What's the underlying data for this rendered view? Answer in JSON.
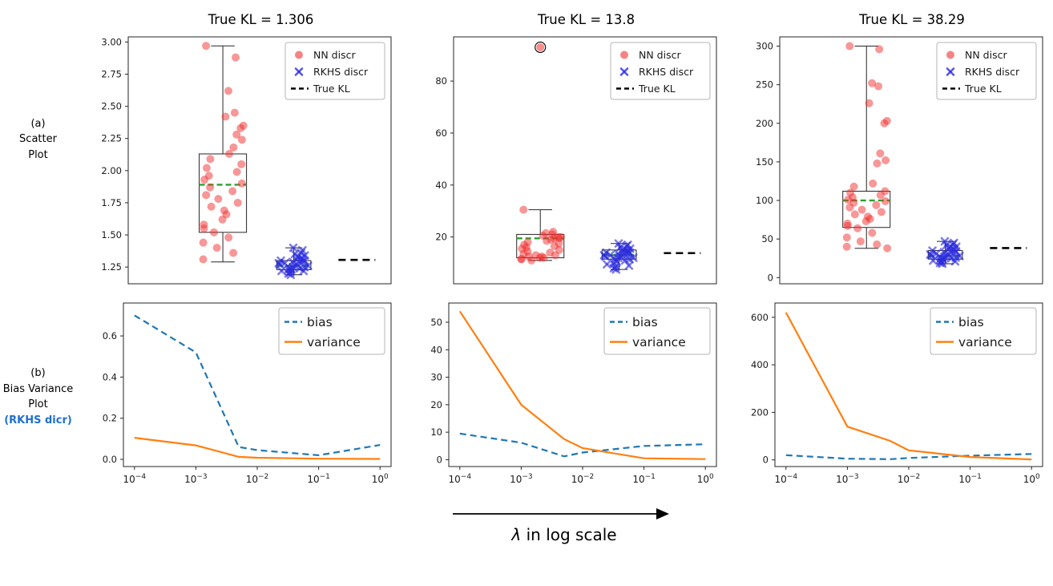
{
  "colors": {
    "nn_scatter": "#f03030",
    "rkhs_scatter": "#2a2ae0",
    "median": "#2ca02c",
    "true_kl": "#000000",
    "bias_line": "#1f77b4",
    "variance_line": "#ff7f0e",
    "row_label_accent": "#1f6fd0"
  },
  "row_labels": {
    "a": [
      "(a)",
      "Scatter",
      "Plot"
    ],
    "b": [
      "(b)",
      "Bias  Variance",
      "Plot",
      "(RKHS dicr)"
    ]
  },
  "annotation": {
    "symbol": "λ",
    "text": " in log scale"
  },
  "chart_data": [
    {
      "type": "box-scatter",
      "title": "True KL = 1.306",
      "true_kl": 1.306,
      "ylim": [
        1.12,
        3.04
      ],
      "yticks": [
        1.25,
        1.5,
        1.75,
        2.0,
        2.25,
        2.5,
        2.75,
        3.0
      ],
      "ydec": 2,
      "median_color": "#2ca02c",
      "groups": [
        {
          "name": "NN discr",
          "marker": "circle",
          "color": "#f03030",
          "center": 0.36,
          "box_width": 0.18,
          "box": {
            "whislo": 1.29,
            "q1": 1.52,
            "med": 1.89,
            "q3": 2.13,
            "whishi": 2.97
          },
          "points": [
            2.97,
            2.88,
            2.62,
            2.45,
            2.42,
            2.35,
            2.33,
            2.28,
            2.24,
            2.18,
            2.13,
            2.09,
            2.05,
            2.02,
            1.99,
            1.96,
            1.93,
            1.9,
            1.87,
            1.84,
            1.81,
            1.78,
            1.75,
            1.72,
            1.69,
            1.66,
            1.62,
            1.58,
            1.55,
            1.52,
            1.48,
            1.44,
            1.4,
            1.36,
            1.31
          ]
        },
        {
          "name": "RKHS discr",
          "marker": "x",
          "color": "#2a2ae0",
          "center": 0.63,
          "box_width": 0.13,
          "box": {
            "whislo": 1.19,
            "q1": 1.23,
            "med": 1.26,
            "q3": 1.3,
            "whishi": 1.4
          },
          "points": [
            1.4,
            1.38,
            1.36,
            1.35,
            1.34,
            1.33,
            1.32,
            1.31,
            1.31,
            1.3,
            1.3,
            1.29,
            1.29,
            1.28,
            1.28,
            1.27,
            1.27,
            1.26,
            1.26,
            1.25,
            1.25,
            1.24,
            1.24,
            1.23,
            1.23,
            1.22,
            1.22,
            1.21,
            1.2,
            1.19
          ]
        }
      ],
      "legend": [
        {
          "label": "NN discr",
          "marker": "circle",
          "color": "#f03030"
        },
        {
          "label": "RKHS discr",
          "marker": "x",
          "color": "#2a2ae0"
        },
        {
          "label": "True KL",
          "marker": "dash",
          "color": "#000000"
        }
      ]
    },
    {
      "type": "box-scatter",
      "title": "True KL = 13.8",
      "true_kl": 13.8,
      "ylim": [
        2,
        97
      ],
      "yticks": [
        20,
        40,
        60,
        80
      ],
      "ydec": 0,
      "median_color": "#2ca02c",
      "groups": [
        {
          "name": "NN discr",
          "marker": "circle",
          "color": "#f03030",
          "center": 0.33,
          "box_width": 0.18,
          "box": {
            "whislo": 11,
            "q1": 12,
            "med": 19.5,
            "q3": 21,
            "whishi": 30.5
          },
          "outliers": [
            93
          ],
          "points": [
            30.5,
            22,
            21.5,
            21,
            20.5,
            20,
            20,
            19.5,
            19.5,
            19,
            18.5,
            18,
            17.5,
            17,
            16.5,
            16,
            15.5,
            15,
            14.5,
            14,
            13.5,
            13,
            13,
            12.5,
            12.5,
            12,
            12,
            11.5,
            11.5,
            11
          ]
        },
        {
          "name": "RKHS discr",
          "marker": "x",
          "color": "#2a2ae0",
          "center": 0.63,
          "box_width": 0.13,
          "box": {
            "whislo": 7.5,
            "q1": 11.5,
            "med": 13,
            "q3": 15,
            "whishi": 17.5
          },
          "points": [
            17.5,
            17,
            16.5,
            16,
            15.5,
            15,
            15,
            14.5,
            14.5,
            14,
            14,
            13.5,
            13.5,
            13,
            13,
            13,
            12.5,
            12.5,
            12,
            12,
            11.5,
            11.5,
            11,
            10.5,
            10,
            9.5,
            9,
            8.5,
            8,
            7.5
          ]
        }
      ],
      "legend": [
        {
          "label": "NN discr",
          "marker": "circle",
          "color": "#f03030"
        },
        {
          "label": "RKHS discr",
          "marker": "x",
          "color": "#2a2ae0"
        },
        {
          "label": "True KL",
          "marker": "dash",
          "color": "#000000"
        }
      ]
    },
    {
      "type": "box-scatter",
      "title": "True KL = 38.29",
      "true_kl": 38.29,
      "ylim": [
        -8,
        312
      ],
      "yticks": [
        0,
        50,
        100,
        150,
        200,
        250,
        300
      ],
      "ydec": 0,
      "median_color": "#2ca02c",
      "groups": [
        {
          "name": "NN discr",
          "marker": "circle",
          "color": "#f03030",
          "center": 0.33,
          "box_width": 0.18,
          "box": {
            "whislo": 38,
            "q1": 65,
            "med": 100,
            "q3": 112,
            "whishi": 300
          },
          "points": [
            300,
            296,
            252,
            248,
            226,
            203,
            200,
            161,
            152,
            148,
            122,
            118,
            112,
            110,
            107,
            104,
            101,
            99,
            97,
            94,
            91,
            88,
            85,
            82,
            79,
            76,
            73,
            70,
            67,
            64,
            58,
            52,
            47,
            43,
            40,
            38
          ]
        },
        {
          "name": "RKHS discr",
          "marker": "x",
          "color": "#2a2ae0",
          "center": 0.63,
          "box_width": 0.13,
          "box": {
            "whislo": 18,
            "q1": 24,
            "med": 28,
            "q3": 35,
            "whishi": 47
          },
          "points": [
            47,
            45,
            43,
            42,
            40,
            39,
            38,
            37,
            36,
            35,
            34,
            33,
            32,
            31,
            30,
            30,
            29,
            28,
            28,
            27,
            26,
            26,
            25,
            24,
            23,
            22,
            21,
            20,
            19,
            18
          ]
        }
      ],
      "legend": [
        {
          "label": "NN discr",
          "marker": "circle",
          "color": "#f03030"
        },
        {
          "label": "RKHS discr",
          "marker": "x",
          "color": "#2a2ae0"
        },
        {
          "label": "True KL",
          "marker": "dash",
          "color": "#000000"
        }
      ]
    },
    {
      "type": "line",
      "x": [
        0.0001,
        0.001,
        0.005,
        0.01,
        0.1,
        1.0
      ],
      "xlog": [
        -4.18,
        0.18
      ],
      "xticks": [
        0.0001,
        0.001,
        0.01,
        0.1,
        1.0
      ],
      "xtick_sup": [
        "−4",
        "−3",
        "−2",
        "−1",
        "0"
      ],
      "ylim": [
        -0.035,
        0.76
      ],
      "yticks": [
        0.0,
        0.2,
        0.4,
        0.6
      ],
      "ydec": 1,
      "series": [
        {
          "name": "bias",
          "color": "#1f77b4",
          "dash": "8 5",
          "values": [
            0.7,
            0.52,
            0.06,
            0.045,
            0.02,
            0.07
          ]
        },
        {
          "name": "variance",
          "color": "#ff7f0e",
          "values": [
            0.105,
            0.068,
            0.012,
            0.008,
            0.003,
            0.002
          ]
        }
      ]
    },
    {
      "type": "line",
      "x": [
        0.0001,
        0.001,
        0.005,
        0.01,
        0.1,
        1.0
      ],
      "xlog": [
        -4.18,
        0.18
      ],
      "xticks": [
        0.0001,
        0.001,
        0.01,
        0.1,
        1.0
      ],
      "xtick_sup": [
        "−4",
        "−3",
        "−2",
        "−1",
        "0"
      ],
      "ylim": [
        -2.5,
        57
      ],
      "yticks": [
        0,
        10,
        20,
        30,
        40,
        50
      ],
      "ydec": 0,
      "series": [
        {
          "name": "bias",
          "color": "#1f77b4",
          "dash": "8 5",
          "values": [
            9.5,
            6.2,
            1.2,
            2.6,
            5.0,
            5.6
          ]
        },
        {
          "name": "variance",
          "color": "#ff7f0e",
          "values": [
            54,
            20,
            7.5,
            4.2,
            0.5,
            0.2
          ]
        }
      ]
    },
    {
      "type": "line",
      "x": [
        0.0001,
        0.001,
        0.005,
        0.01,
        0.1,
        1.0
      ],
      "xlog": [
        -4.18,
        0.18
      ],
      "xticks": [
        0.0001,
        0.001,
        0.01,
        0.1,
        1.0
      ],
      "xtick_sup": [
        "−4",
        "−3",
        "−2",
        "−1",
        "0"
      ],
      "ylim": [
        -28,
        660
      ],
      "yticks": [
        0,
        200,
        400,
        600
      ],
      "ydec": 0,
      "series": [
        {
          "name": "bias",
          "color": "#1f77b4",
          "dash": "8 5",
          "values": [
            20,
            5,
            3,
            8,
            18,
            25
          ]
        },
        {
          "name": "variance",
          "color": "#ff7f0e",
          "values": [
            620,
            140,
            80,
            40,
            12,
            2
          ]
        }
      ]
    }
  ]
}
